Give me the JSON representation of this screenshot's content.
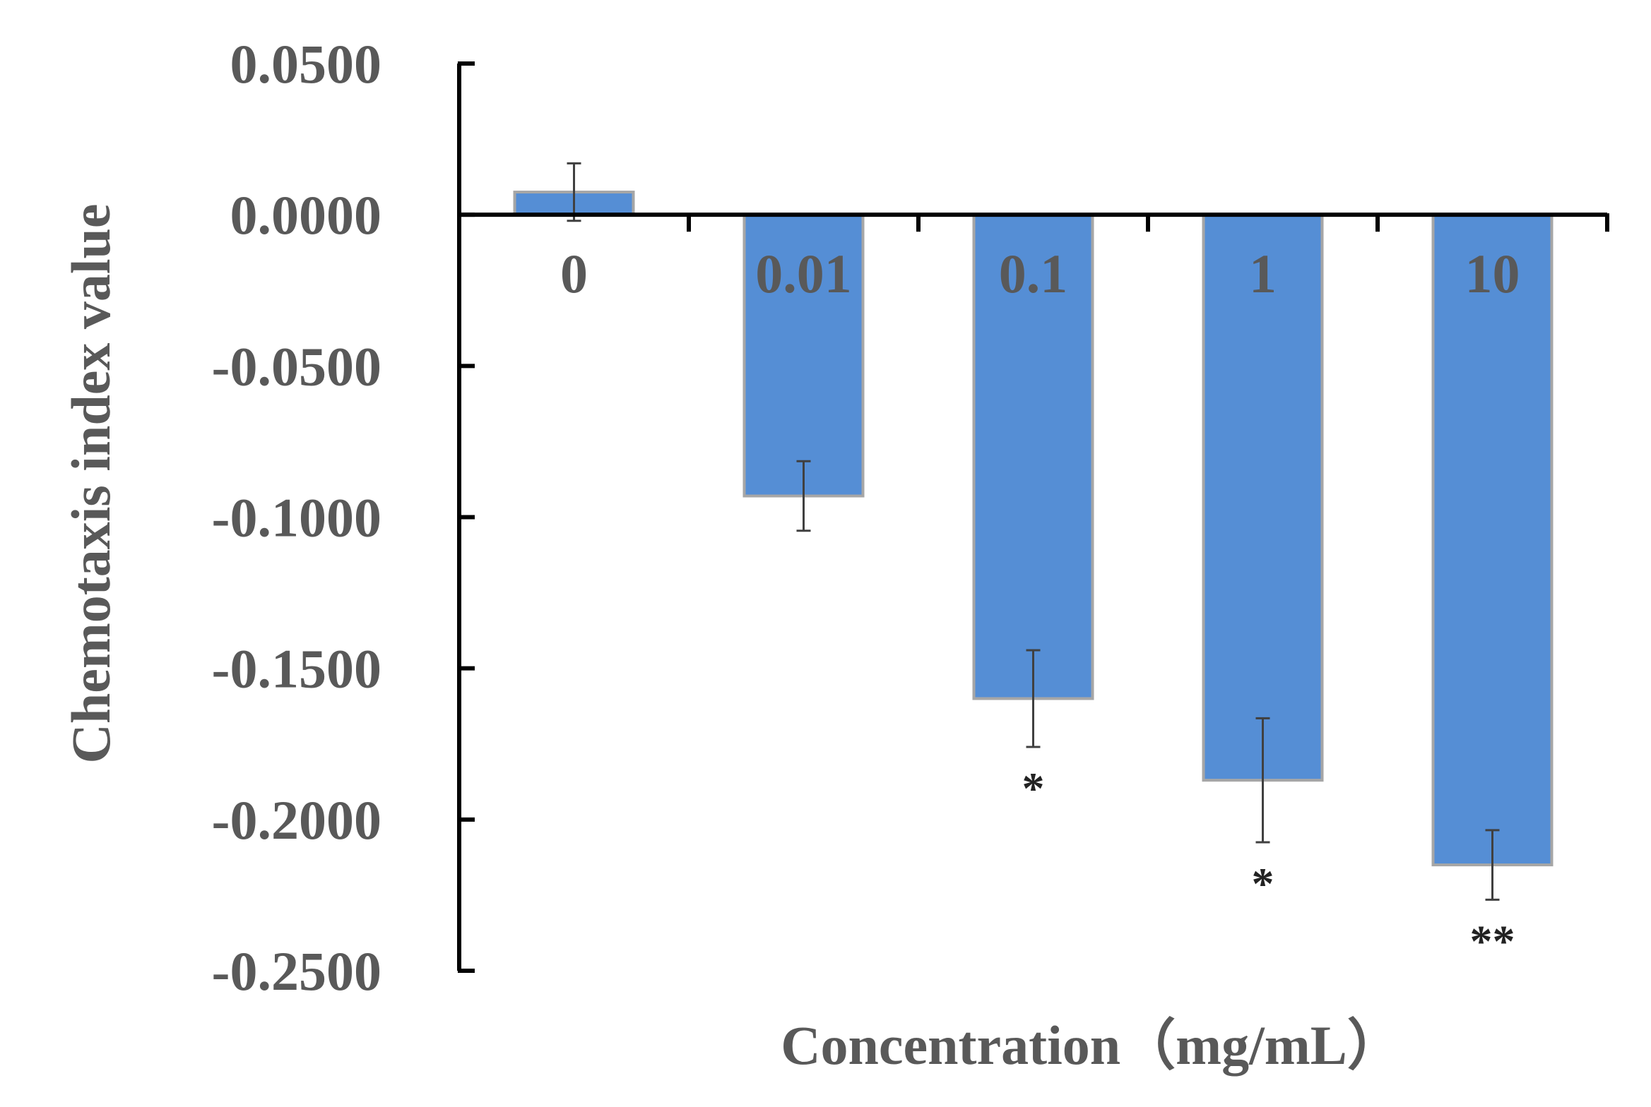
{
  "chart_data": {
    "type": "bar",
    "title": "",
    "xlabel": "Concentration（mg/mL）",
    "ylabel": "Chemotaxis index value",
    "categories": [
      "0",
      "0.01",
      "0.1",
      "1",
      "10"
    ],
    "values": [
      0.0075,
      -0.093,
      -0.16,
      -0.187,
      -0.215
    ],
    "errors": [
      0.0095,
      0.0115,
      0.016,
      0.0205,
      0.0115
    ],
    "significance": [
      "",
      "",
      "*",
      "*",
      "**"
    ],
    "ylim": [
      -0.25,
      0.05
    ],
    "yticks": [
      0.05,
      0.0,
      -0.05,
      -0.1,
      -0.15,
      -0.2,
      -0.25
    ],
    "ytick_labels": [
      "0.0500",
      "0.0000",
      "-0.0500",
      "-0.1000",
      "-0.1500",
      "-0.2000",
      "-0.2500"
    ],
    "grid": false,
    "legend": "none",
    "colors": {
      "bar": "#558ed5",
      "bar_edge": "#a6a6a6",
      "axis": "#000000",
      "error": "#404040",
      "text": "#595959",
      "sig": "#222222"
    }
  }
}
